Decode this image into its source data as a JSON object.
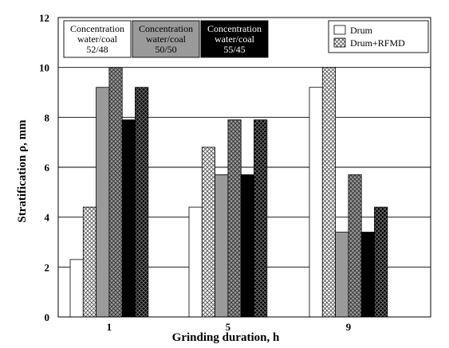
{
  "chart_data": {
    "type": "bar",
    "xlabel": "Grinding duration, h",
    "ylabel": "Stratification ρ, mm",
    "ylim": [
      0,
      12
    ],
    "yticks": [
      0,
      2,
      4,
      6,
      8,
      10,
      12
    ],
    "grid": "horizontal",
    "categories": [
      "1",
      "5",
      "9"
    ],
    "groups": [
      {
        "label_lines": [
          "Concentration",
          "water/coal",
          "52/48"
        ],
        "color": "#ffffff",
        "text_color": "#000000"
      },
      {
        "label_lines": [
          "Concentration",
          "water/coal",
          "50/50"
        ],
        "color": "#9a9a9a",
        "text_color": "#000000"
      },
      {
        "label_lines": [
          "Concentration",
          "water/coal",
          "55/45"
        ],
        "color": "#000000",
        "text_color": "#ffffff"
      }
    ],
    "methods": [
      "Drum",
      "Drum+RFMD"
    ],
    "series": [
      {
        "group": 0,
        "method": 0,
        "values": [
          2.3,
          4.4,
          9.2
        ]
      },
      {
        "group": 0,
        "method": 1,
        "values": [
          4.4,
          6.8,
          10.0
        ]
      },
      {
        "group": 1,
        "method": 0,
        "values": [
          9.2,
          5.7,
          3.4
        ]
      },
      {
        "group": 1,
        "method": 1,
        "values": [
          10.0,
          7.9,
          5.7
        ]
      },
      {
        "group": 2,
        "method": 0,
        "values": [
          7.9,
          5.7,
          3.4
        ]
      },
      {
        "group": 2,
        "method": 1,
        "values": [
          9.2,
          7.9,
          4.4
        ]
      }
    ]
  }
}
